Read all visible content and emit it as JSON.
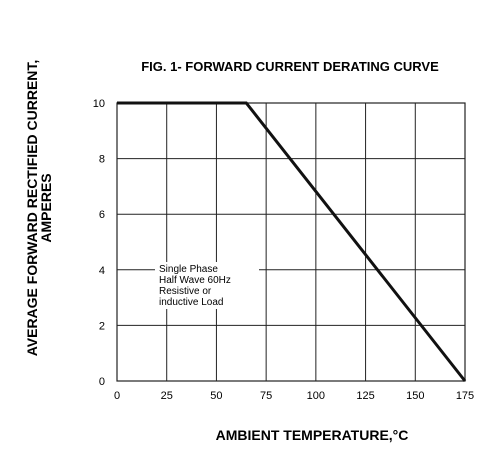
{
  "chart_data": {
    "type": "line",
    "title": "FIG. 1- FORWARD CURRENT DERATING CURVE",
    "xlabel": "AMBIENT TEMPERATURE,°C",
    "ylabel": [
      "AVERAGE FORWARD RECTIFIED CURRENT,",
      "AMPERES"
    ],
    "xlim": [
      0,
      175
    ],
    "ylim": [
      0,
      10
    ],
    "x_ticks": [
      "0",
      "25",
      "50",
      "75",
      "100",
      "125",
      "150",
      "175"
    ],
    "y_ticks": [
      "0",
      "2",
      "4",
      "6",
      "8",
      "10"
    ],
    "grid": true,
    "series": [
      {
        "x": [
          0,
          65,
          175
        ],
        "y": [
          10,
          10,
          0
        ]
      }
    ],
    "annotation": [
      "Single Phase",
      "Half Wave 60Hz",
      "Resistive or",
      "inductive Load"
    ],
    "colors": {
      "line": "#111111",
      "grid": "#222222"
    }
  }
}
